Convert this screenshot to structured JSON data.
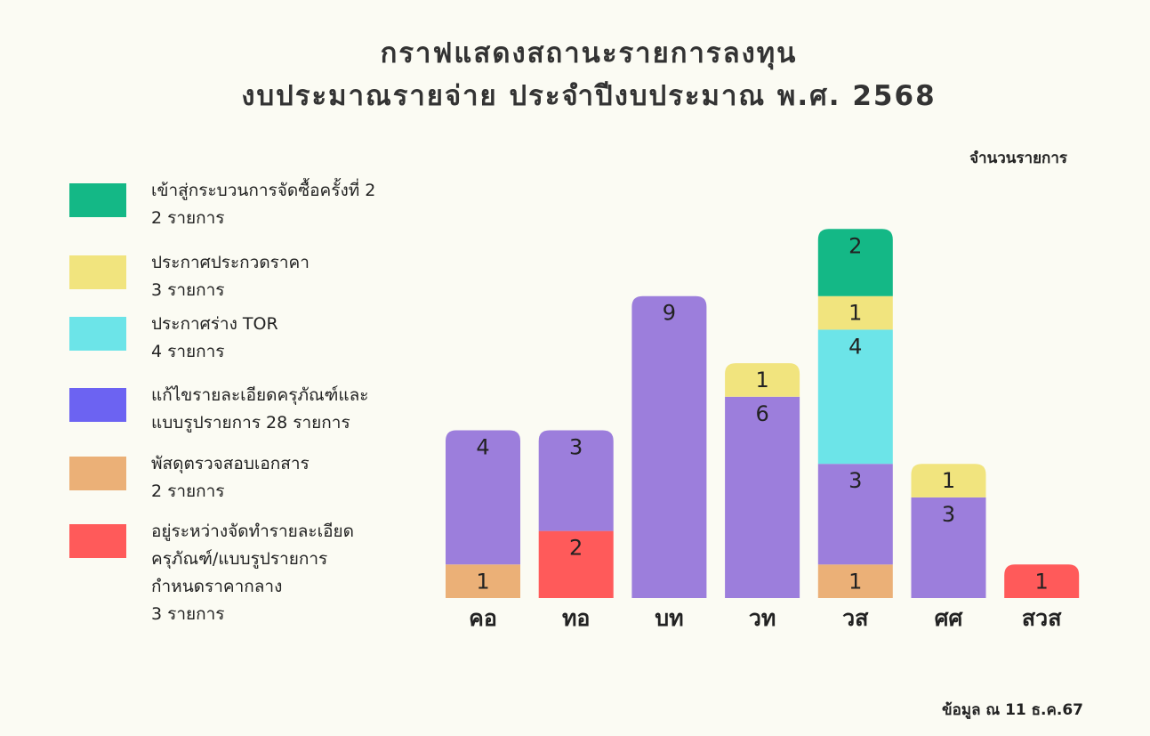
{
  "chart_data": {
    "type": "stacked_bar",
    "title": [
      "กราฟแสดงสถานะรายการลงทุน",
      "งบประมาณรายจ่าย ประจำปีงบประมาณ พ.ศ. 2568"
    ],
    "y_label": "จำนวนรายการ",
    "note": "ข้อมูล ณ 11 ธ.ค.67",
    "categories": [
      "คอ",
      "ทอ",
      "บท",
      "วท",
      "วส",
      "ศศ",
      "สวส"
    ],
    "series": [
      {
        "legend_lines": [
          "อยู่ระหว่างจัดทำรายละเอียด",
          "ครุภัณฑ์/แบบรูปรายการ",
          "กำหนดราคากลาง",
          " 3 รายการ"
        ],
        "color": "#ff5a5a",
        "legend_color": "#ff5a5a",
        "values": [
          null,
          2,
          null,
          null,
          null,
          null,
          1
        ]
      },
      {
        "legend_lines": [
          "พัสดุตรวจสอบเอกสาร",
          " 2 รายการ"
        ],
        "color": "#ebb077",
        "legend_color": "#ebb077",
        "values": [
          1,
          null,
          null,
          null,
          1,
          null,
          null
        ]
      },
      {
        "legend_lines": [
          "แก้ไขรายละเอียดครุภัณฑ์และ",
          "แบบรูปรายการ 28 รายการ"
        ],
        "color": "#9c7edc",
        "legend_color": "#6c63f2",
        "values": [
          4,
          3,
          9,
          6,
          3,
          3,
          null
        ]
      },
      {
        "legend_lines": [
          "ประกาศร่าง TOR",
          "4 รายการ"
        ],
        "color": "#6ce4e8",
        "legend_color": "#6ce4e8",
        "values": [
          null,
          null,
          null,
          null,
          4,
          null,
          null
        ]
      },
      {
        "legend_lines": [
          "ประกาศประกวดราคา",
          " 3 รายการ"
        ],
        "color": "#f1e47e",
        "legend_color": "#f1e47e",
        "values": [
          null,
          null,
          null,
          1,
          1,
          1,
          null
        ]
      },
      {
        "legend_lines": [
          "เข้าสู่กระบวนการจัดซื้อครั้งที่ 2",
          "2 รายการ"
        ],
        "color": "#14b886",
        "legend_color": "#14b886",
        "values": [
          null,
          null,
          null,
          null,
          2,
          null,
          null
        ]
      }
    ]
  }
}
